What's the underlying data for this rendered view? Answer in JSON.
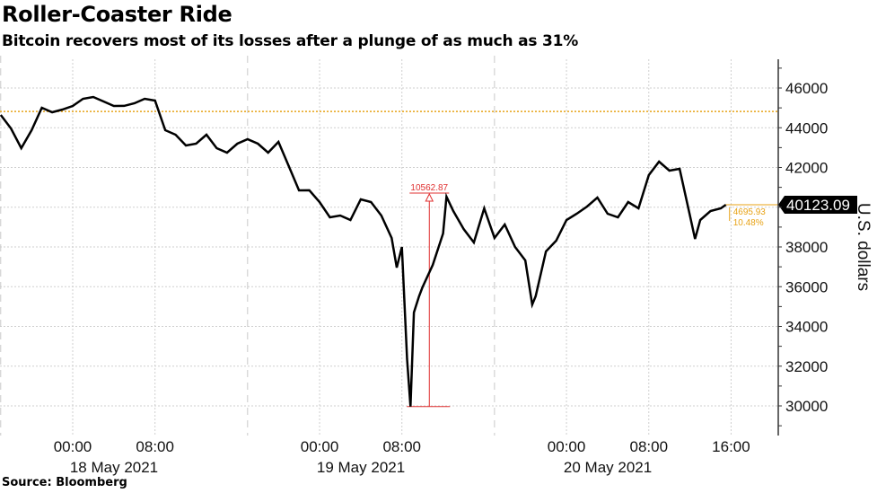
{
  "title": "Roller-Coaster Ride",
  "subtitle": "Bitcoin recovers most of its losses after a plunge of as much as 31%",
  "source": "Source: Bloomberg",
  "chart_data": {
    "type": "line",
    "title": "Roller-Coaster Ride",
    "ylabel": "U.S. dollars",
    "ylim": [
      30000,
      46000
    ],
    "yticks": [
      30000,
      32000,
      34000,
      36000,
      38000,
      40000,
      42000,
      44000,
      46000
    ],
    "ytick_labels": [
      "30000",
      "32000",
      "34000",
      "36000",
      "38000",
      "40000",
      "42000",
      "44000",
      "46000"
    ],
    "xticks": [
      {
        "time": "2021-05-18T00:00",
        "label": "00:00",
        "date_label": "18 May 2021"
      },
      {
        "time": "2021-05-18T08:00",
        "label": "08:00"
      },
      {
        "time": "2021-05-19T00:00",
        "label": "00:00",
        "date_label": "19 May 2021"
      },
      {
        "time": "2021-05-19T08:00",
        "label": "08:00"
      },
      {
        "time": "2021-05-20T00:00",
        "label": "00:00",
        "date_label": "20 May 2021"
      },
      {
        "time": "2021-05-20T08:00",
        "label": "08:00"
      },
      {
        "time": "2021-05-20T16:00",
        "label": "16:00"
      }
    ],
    "grid": true,
    "colors": {
      "line": "#000000",
      "reference": "#e8a317",
      "annotation": "#e03030",
      "last_label_bg": "#000000"
    },
    "reference_line": {
      "value": 44819.02
    },
    "last_value": {
      "value": 40123.09,
      "label": "40123.09"
    },
    "change_labels": [
      "4695.93",
      "10.48%"
    ],
    "range_annotation": {
      "label": "10562.87",
      "time": "2021-05-19T10:40",
      "low": 29968,
      "high": 40531
    },
    "series": [
      {
        "points": [
          [
            "2021-05-17T17:00",
            44644
          ],
          [
            "2021-05-17T18:00",
            43966
          ],
          [
            "2021-05-17T19:00",
            42972
          ],
          [
            "2021-05-17T20:00",
            43876
          ],
          [
            "2021-05-17T21:00",
            45006
          ],
          [
            "2021-05-17T22:00",
            44780
          ],
          [
            "2021-05-17T23:00",
            44915
          ],
          [
            "2021-05-18T00:00",
            45096
          ],
          [
            "2021-05-18T01:00",
            45458
          ],
          [
            "2021-05-18T02:00",
            45548
          ],
          [
            "2021-05-18T03:00",
            45322
          ],
          [
            "2021-05-18T04:00",
            45096
          ],
          [
            "2021-05-18T05:00",
            45100
          ],
          [
            "2021-05-18T06:00",
            45232
          ],
          [
            "2021-05-18T07:00",
            45458
          ],
          [
            "2021-05-18T08:00",
            45367
          ],
          [
            "2021-05-18T09:00",
            43876
          ],
          [
            "2021-05-18T10:00",
            43650
          ],
          [
            "2021-05-18T11:00",
            43107
          ],
          [
            "2021-05-18T12:00",
            43198
          ],
          [
            "2021-05-18T13:00",
            43650
          ],
          [
            "2021-05-18T14:00",
            42972
          ],
          [
            "2021-05-18T15:00",
            42746
          ],
          [
            "2021-05-18T16:00",
            43198
          ],
          [
            "2021-05-18T17:00",
            43424
          ],
          [
            "2021-05-18T18:00",
            43198
          ],
          [
            "2021-05-18T19:00",
            42746
          ],
          [
            "2021-05-18T20:00",
            43288
          ],
          [
            "2021-05-18T21:00",
            42068
          ],
          [
            "2021-05-18T22:00",
            40847
          ],
          [
            "2021-05-18T23:00",
            40850
          ],
          [
            "2021-05-19T00:00",
            40260
          ],
          [
            "2021-05-19T01:00",
            39492
          ],
          [
            "2021-05-19T02:00",
            39582
          ],
          [
            "2021-05-19T03:00",
            39356
          ],
          [
            "2021-05-19T04:00",
            40395
          ],
          [
            "2021-05-19T05:00",
            40260
          ],
          [
            "2021-05-19T06:00",
            39582
          ],
          [
            "2021-05-19T07:00",
            38452
          ],
          [
            "2021-05-19T07:30",
            36960
          ],
          [
            "2021-05-19T08:00",
            38000
          ],
          [
            "2021-05-19T08:30",
            32350
          ],
          [
            "2021-05-19T08:50",
            29968
          ],
          [
            "2021-05-19T09:10",
            34700
          ],
          [
            "2021-05-19T09:40",
            35514
          ],
          [
            "2021-05-19T10:00",
            35966
          ],
          [
            "2021-05-19T11:00",
            37096
          ],
          [
            "2021-05-19T12:00",
            38678
          ],
          [
            "2021-05-19T12:20",
            40531
          ],
          [
            "2021-05-19T13:00",
            39808
          ],
          [
            "2021-05-19T14:00",
            38904
          ],
          [
            "2021-05-19T15:00",
            38226
          ],
          [
            "2021-05-19T16:00",
            39944
          ],
          [
            "2021-05-19T17:00",
            38452
          ],
          [
            "2021-05-19T18:00",
            39130
          ],
          [
            "2021-05-19T19:00",
            38000
          ],
          [
            "2021-05-19T20:00",
            37322
          ],
          [
            "2021-05-19T20:40",
            35100
          ],
          [
            "2021-05-19T21:00",
            35514
          ],
          [
            "2021-05-19T22:00",
            37774
          ],
          [
            "2021-05-19T23:00",
            38316
          ],
          [
            "2021-05-20T00:00",
            39356
          ],
          [
            "2021-05-20T01:00",
            39672
          ],
          [
            "2021-05-20T02:00",
            40034
          ],
          [
            "2021-05-20T03:00",
            40486
          ],
          [
            "2021-05-20T04:00",
            39672
          ],
          [
            "2021-05-20T05:00",
            39492
          ],
          [
            "2021-05-20T06:00",
            40260
          ],
          [
            "2021-05-20T07:00",
            39944
          ],
          [
            "2021-05-20T08:00",
            41616
          ],
          [
            "2021-05-20T09:00",
            42294
          ],
          [
            "2021-05-20T10:00",
            41842
          ],
          [
            "2021-05-20T11:00",
            41932
          ],
          [
            "2021-05-20T12:00",
            39582
          ],
          [
            "2021-05-20T12:30",
            38400
          ],
          [
            "2021-05-20T13:00",
            39356
          ],
          [
            "2021-05-20T14:00",
            39808
          ],
          [
            "2021-05-20T15:00",
            39944
          ],
          [
            "2021-05-20T15:30",
            40123.09
          ]
        ]
      }
    ]
  }
}
